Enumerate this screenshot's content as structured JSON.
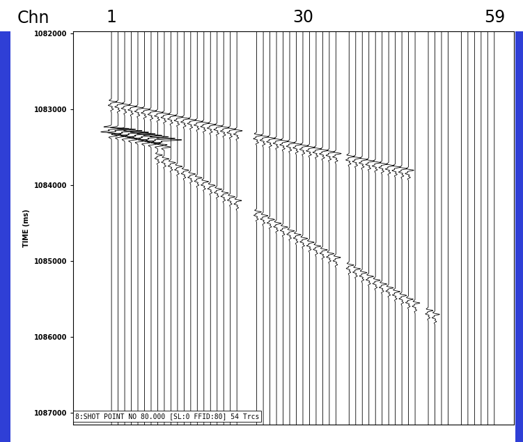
{
  "chart_data": {
    "type": "wiggle",
    "x_label": "Chn",
    "y_label": "TIME (ms)",
    "annotation": "8:SHOT POINT NO 80.000 [SL:0 FFID:80] 54 Trcs",
    "x": [
      1,
      2,
      3,
      4,
      5,
      6,
      7,
      8,
      9,
      10,
      11,
      12,
      13,
      14,
      15,
      16,
      17,
      18,
      19,
      20,
      23,
      24,
      25,
      26,
      27,
      28,
      29,
      30,
      31,
      32,
      33,
      34,
      35,
      37,
      38,
      39,
      40,
      41,
      42,
      43,
      44,
      45,
      46,
      47,
      49,
      50,
      51,
      52,
      54,
      55,
      56,
      57,
      58,
      59
    ],
    "xlim": [
      -4.8,
      62
    ],
    "xticks": [
      1,
      30,
      59
    ],
    "ylim": [
      1087150,
      1081970
    ],
    "yticks": [
      1082000,
      1083000,
      1084000,
      1085000,
      1086000,
      1087000
    ],
    "events": [
      {
        "channels": [
          1,
          2,
          3,
          4,
          5,
          6,
          7,
          8,
          9,
          10,
          11,
          12,
          13,
          14,
          15,
          16,
          17,
          18,
          19,
          20,
          23,
          24,
          25,
          26,
          27,
          28,
          29,
          30,
          31,
          32,
          33,
          34,
          35,
          37,
          38,
          39,
          40,
          41,
          42,
          43,
          44,
          45,
          46
        ],
        "times": [
          1082900,
          1082920,
          1082940,
          1082960,
          1082980,
          1083000,
          1083020,
          1083040,
          1083060,
          1083080,
          1083100,
          1083120,
          1083140,
          1083160,
          1083180,
          1083200,
          1083220,
          1083240,
          1083260,
          1083280,
          1083340,
          1083360,
          1083380,
          1083400,
          1083420,
          1083440,
          1083460,
          1083480,
          1083500,
          1083520,
          1083540,
          1083560,
          1083580,
          1083620,
          1083640,
          1083660,
          1083680,
          1083700,
          1083720,
          1083740,
          1083760,
          1083780,
          1083800
        ]
      },
      {
        "channels": [
          1,
          2,
          3,
          4,
          5,
          6,
          7,
          8,
          9
        ],
        "times": [
          1083250,
          1083260,
          1083280,
          1083300,
          1083320,
          1083340,
          1083360,
          1083380,
          1083400
        ]
      },
      {
        "channels": [
          8,
          9,
          10,
          11,
          12,
          13,
          14,
          15,
          16,
          17,
          18,
          19,
          20,
          23,
          24,
          25,
          26,
          27,
          28,
          29,
          30,
          31,
          32,
          33,
          34,
          35,
          37,
          38,
          39,
          40,
          41,
          42,
          43,
          44,
          45,
          46,
          47,
          49,
          50
        ],
        "times": [
          1083600,
          1083650,
          1083700,
          1083750,
          1083800,
          1083850,
          1083900,
          1083950,
          1084000,
          1084050,
          1084100,
          1084150,
          1084200,
          1084350,
          1084400,
          1084450,
          1084500,
          1084550,
          1084600,
          1084650,
          1084700,
          1084750,
          1084800,
          1084850,
          1084900,
          1084950,
          1085050,
          1085100,
          1085150,
          1085200,
          1085250,
          1085300,
          1085350,
          1085400,
          1085450,
          1085500,
          1085550,
          1085650,
          1085700
        ]
      }
    ]
  }
}
